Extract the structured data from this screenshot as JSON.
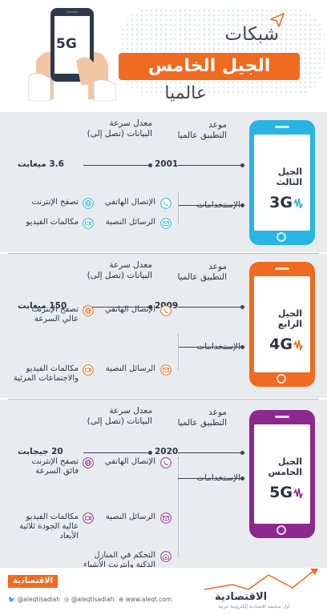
{
  "header": {
    "title_line1": "شبكات",
    "title_banner": "الجيل الخامس",
    "title_line3": "عالميا",
    "phone_badge": "5G"
  },
  "labels": {
    "launch_date": "موعد\nالتطبيق عالميا",
    "data_rate": "معدل سرعة\nالبيانات (تصل إلى)",
    "uses": "الإستخدامات"
  },
  "generations": [
    {
      "name": "الجيل\nالثالث",
      "code": "3G",
      "year": "2001",
      "speed": "3.6 ميغابت",
      "color": "#28b5e3",
      "uses": [
        {
          "icon": "phone-icon",
          "text": "الإتصال الهاتفي"
        },
        {
          "icon": "globe-icon",
          "text": "تصفح الإنترنت"
        },
        {
          "icon": "mail-icon",
          "text": "الرسائل النصية"
        },
        {
          "icon": "video-icon",
          "text": "مكالمات الفيديو"
        }
      ]
    },
    {
      "name": "الجيل\nالرابع",
      "code": "4G",
      "year": "2009",
      "speed": "150 ميغابت",
      "color": "#f06a20",
      "uses": [
        {
          "icon": "phone-icon",
          "text": "الإتصال الهاتفي"
        },
        {
          "icon": "globe-icon",
          "text": "تصفح الإنترنت\nعالي السرعة"
        },
        {
          "icon": "mail-icon",
          "text": "الرسائل النصية"
        },
        {
          "icon": "video-icon",
          "text": "مكالمات الفيديو\nوالاجتماعات المرئية"
        }
      ]
    },
    {
      "name": "الجيل\nالخامس",
      "code": "5G",
      "year": "2020",
      "speed": "20 جيجابت",
      "color": "#8b2a8c",
      "uses": [
        {
          "icon": "phone-icon",
          "text": "الإتصال الهاتفي"
        },
        {
          "icon": "globe-icon",
          "text": "تصفح الإنترنت\nفائق السرعة"
        },
        {
          "icon": "mail-icon",
          "text": "الرسائل النصية"
        },
        {
          "icon": "video-icon",
          "text": "مكالمات الفيديو\nعالية الجودة ثلاثية\nالأبعاد"
        },
        {
          "icon": "smart-home-icon",
          "text": "التحكم في المنازل\nالذكية وإنترنت الأشياء"
        }
      ]
    }
  ],
  "footer": {
    "brand": "الاقتصادية",
    "twitter": "@aleqtisadiah",
    "instagram": "@aleqtisadiah",
    "website": "www.aleqt.com",
    "brand_subtitle": "أول صحيفة اقتصادية إلكترونية عربية"
  },
  "colors": {
    "accent": "#f06a20",
    "section_bg": "#e8ecef",
    "text": "#2a3441"
  }
}
